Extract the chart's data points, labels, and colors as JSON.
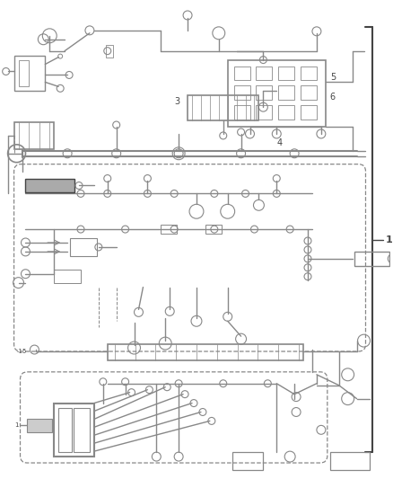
{
  "bg_color": "#ffffff",
  "line_color": "#888888",
  "dark_line": "#444444",
  "fig_width": 4.38,
  "fig_height": 5.33,
  "dpi": 100
}
